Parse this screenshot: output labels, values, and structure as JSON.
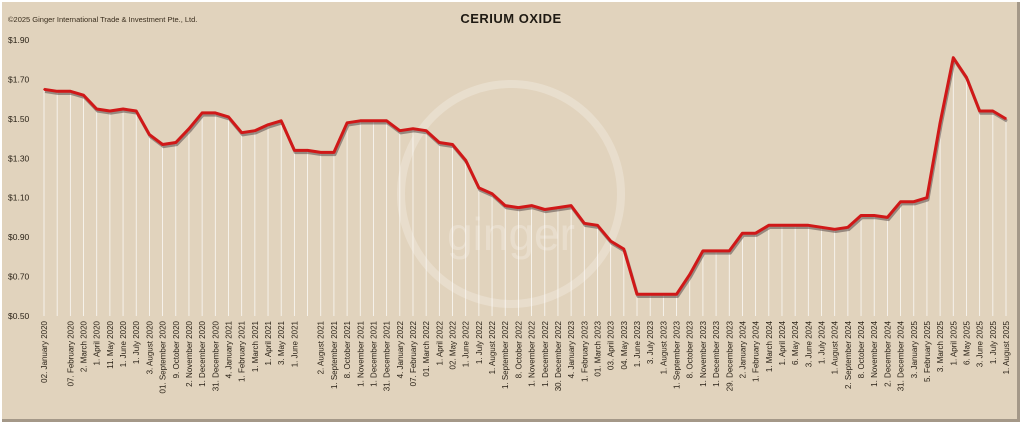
{
  "copyright": "©2025 Ginger International Trade & Investment Pte., Ltd.",
  "watermark": "ginger",
  "colors": {
    "background": "#e1d3bd",
    "line": "#d01818",
    "shadow": "#5a4a4a",
    "drop_lines": "#ffffff"
  },
  "chart_data": {
    "type": "line",
    "title": "CERIUM OXIDE",
    "xlabel": "",
    "ylabel": "",
    "ylim": [
      0.5,
      1.9
    ],
    "y_ticks": [
      "$0.50",
      "$0.70",
      "$0.90",
      "$1.10",
      "$1.30",
      "$1.50",
      "$1.70",
      "$1.90"
    ],
    "grid": false,
    "legend": "none",
    "x": [
      "02. January 2020",
      "",
      "07. February 2020",
      "2. March 2020",
      "1. April 2020",
      "11. May 2020",
      "1. June 2020",
      "1. July 2020",
      "3. August 2020",
      "01. September 2020",
      "9. October 2020",
      "2. November 2020",
      "1. December 2020",
      "31. December 2020",
      "4. January 2021",
      "1. February 2021",
      "1. March 2021",
      "1. April 2021",
      "3. May 2021",
      "1. June 2021",
      "",
      "2. August 2021",
      "1. September 2021",
      "8. October 2021",
      "1. November 2021",
      "1. December 2021",
      "31. December 2021",
      "4. January 2022",
      "07. February 2022",
      "01. March 2022",
      "1. April 2022",
      "02. May 2022",
      "1. June 2022",
      "1. July 2022",
      "1. August 2022",
      "1. September 2022",
      "8. October 2022",
      "1. November 2022",
      "1. December 2022",
      "30. December 2022",
      "4. January 2023",
      "1. February 2023",
      "01. March 2023",
      "03. April 2023",
      "04. May 2023",
      "1. June 2023",
      "3. July 2023",
      "1. August 2023",
      "1. September 2023",
      "8. October 2023",
      "1. November 2023",
      "1. December 2023",
      "29. December 2023",
      "2. January 2024",
      "1. February 2024",
      "1. March 2024",
      "1. April 2024",
      "6. May 2024",
      "3. June 2024",
      "1. July 2024",
      "1. August 2024",
      "2. September 2024",
      "8. October 2024",
      "1. November 2024",
      "2. December 2024",
      "31. December 2024",
      "3. January 2025",
      "5. February 2025",
      "3. March 2025",
      "1. April 2025",
      "6. May 2025",
      "3. June 2025",
      "1. July 2025",
      "1. August 2025"
    ],
    "series": [
      {
        "values": [
          1.65,
          1.64,
          1.64,
          1.62,
          1.55,
          1.54,
          1.55,
          1.54,
          1.42,
          1.37,
          1.38,
          1.45,
          1.53,
          1.53,
          1.51,
          1.43,
          1.44,
          1.47,
          1.49,
          1.34,
          1.34,
          1.33,
          1.33,
          1.48,
          1.49,
          1.49,
          1.49,
          1.44,
          1.45,
          1.44,
          1.38,
          1.37,
          1.29,
          1.15,
          1.12,
          1.06,
          1.05,
          1.06,
          1.04,
          1.05,
          1.06,
          0.97,
          0.96,
          0.88,
          0.84,
          0.61,
          0.61,
          0.61,
          0.61,
          0.71,
          0.83,
          0.83,
          0.83,
          0.92,
          0.92,
          0.96,
          0.96,
          0.96,
          0.96,
          0.95,
          0.94,
          0.95,
          1.01,
          1.01,
          1.0,
          1.08,
          1.08,
          1.1,
          1.48,
          1.81,
          1.71,
          1.54,
          1.54,
          1.5
        ]
      }
    ]
  }
}
